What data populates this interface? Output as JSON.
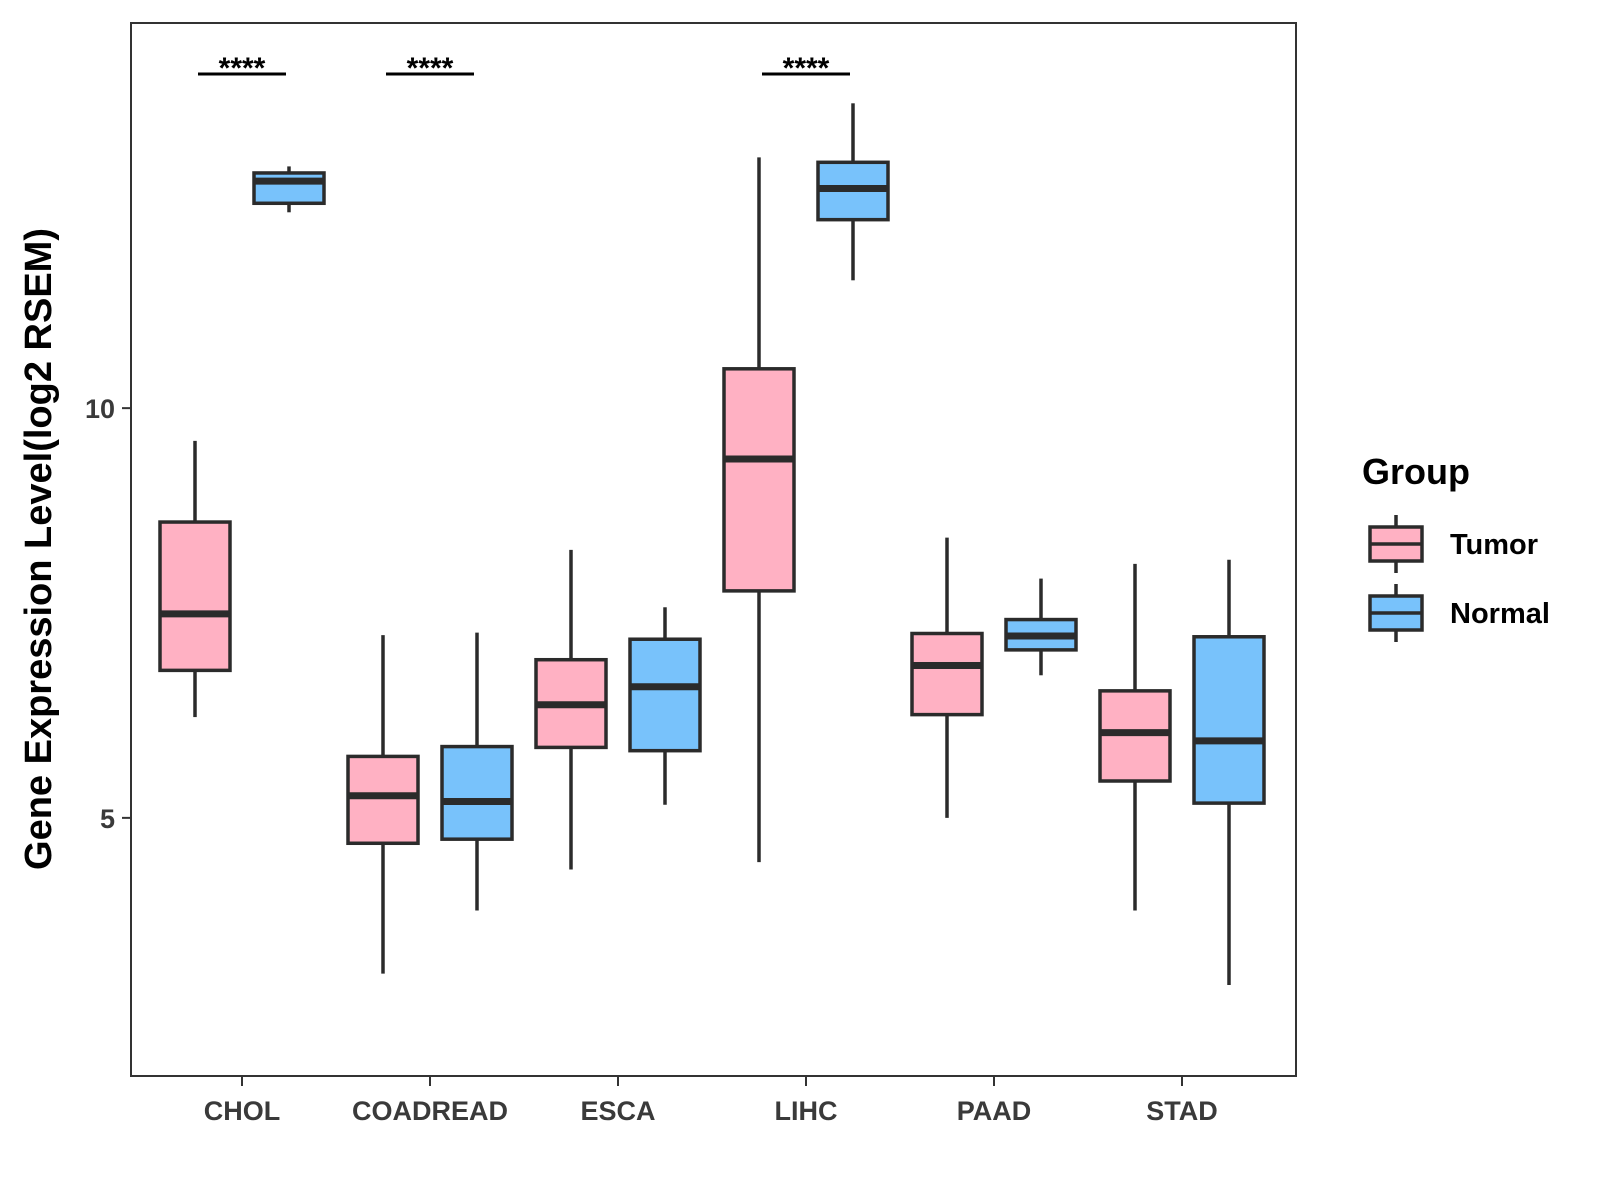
{
  "chart_data": {
    "type": "boxplot",
    "title": "",
    "xlabel": "",
    "ylabel": "Gene Expression Level(log2 RSEM)",
    "ylim": [
      1.85,
      14.7
    ],
    "yticks": [
      5,
      10
    ],
    "ytick_labels": [
      "5",
      "10"
    ],
    "grid": false,
    "categories": [
      "CHOL",
      "COADREAD",
      "ESCA",
      "LIHC",
      "PAAD",
      "STAD"
    ],
    "legend": {
      "title": "Group",
      "position": "right",
      "entries": [
        {
          "label": "Tumor",
          "color": "#FFB1C3"
        },
        {
          "label": "Normal",
          "color": "#78C2FB"
        }
      ]
    },
    "series": [
      {
        "name": "Tumor",
        "color": "#FFB1C3",
        "boxes": [
          {
            "category": "CHOL",
            "min": 6.23,
            "q1": 6.8,
            "median": 7.49,
            "q3": 8.61,
            "max": 9.6
          },
          {
            "category": "COADREAD",
            "min": 3.1,
            "q1": 4.69,
            "median": 5.27,
            "q3": 5.75,
            "max": 7.23
          },
          {
            "category": "ESCA",
            "min": 4.37,
            "q1": 5.86,
            "median": 6.38,
            "q3": 6.93,
            "max": 8.27
          },
          {
            "category": "LIHC",
            "min": 4.46,
            "q1": 7.77,
            "median": 9.38,
            "q3": 10.48,
            "max": 13.06
          },
          {
            "category": "PAAD",
            "min": 5.0,
            "q1": 6.26,
            "median": 6.86,
            "q3": 7.25,
            "max": 8.42
          },
          {
            "category": "STAD",
            "min": 3.87,
            "q1": 5.45,
            "median": 6.04,
            "q3": 6.55,
            "max": 8.1
          }
        ]
      },
      {
        "name": "Normal",
        "color": "#78C2FB",
        "boxes": [
          {
            "category": "CHOL",
            "min": 12.39,
            "q1": 12.5,
            "median": 12.77,
            "q3": 12.87,
            "max": 12.95
          },
          {
            "category": "COADREAD",
            "min": 3.87,
            "q1": 4.74,
            "median": 5.2,
            "q3": 5.87,
            "max": 7.26
          },
          {
            "category": "ESCA",
            "min": 5.16,
            "q1": 5.82,
            "median": 6.6,
            "q3": 7.18,
            "max": 7.57
          },
          {
            "category": "LIHC",
            "min": 11.56,
            "q1": 12.3,
            "median": 12.68,
            "q3": 13.0,
            "max": 13.72
          },
          {
            "category": "PAAD",
            "min": 6.74,
            "q1": 7.05,
            "median": 7.22,
            "q3": 7.42,
            "max": 7.92
          },
          {
            "category": "STAD",
            "min": 2.96,
            "q1": 5.18,
            "median": 5.94,
            "q3": 7.21,
            "max": 8.15
          }
        ]
      }
    ],
    "annotations": [
      {
        "category": "CHOL",
        "text": "****"
      },
      {
        "category": "COADREAD",
        "text": "****"
      },
      {
        "category": "LIHC",
        "text": "****"
      }
    ]
  }
}
